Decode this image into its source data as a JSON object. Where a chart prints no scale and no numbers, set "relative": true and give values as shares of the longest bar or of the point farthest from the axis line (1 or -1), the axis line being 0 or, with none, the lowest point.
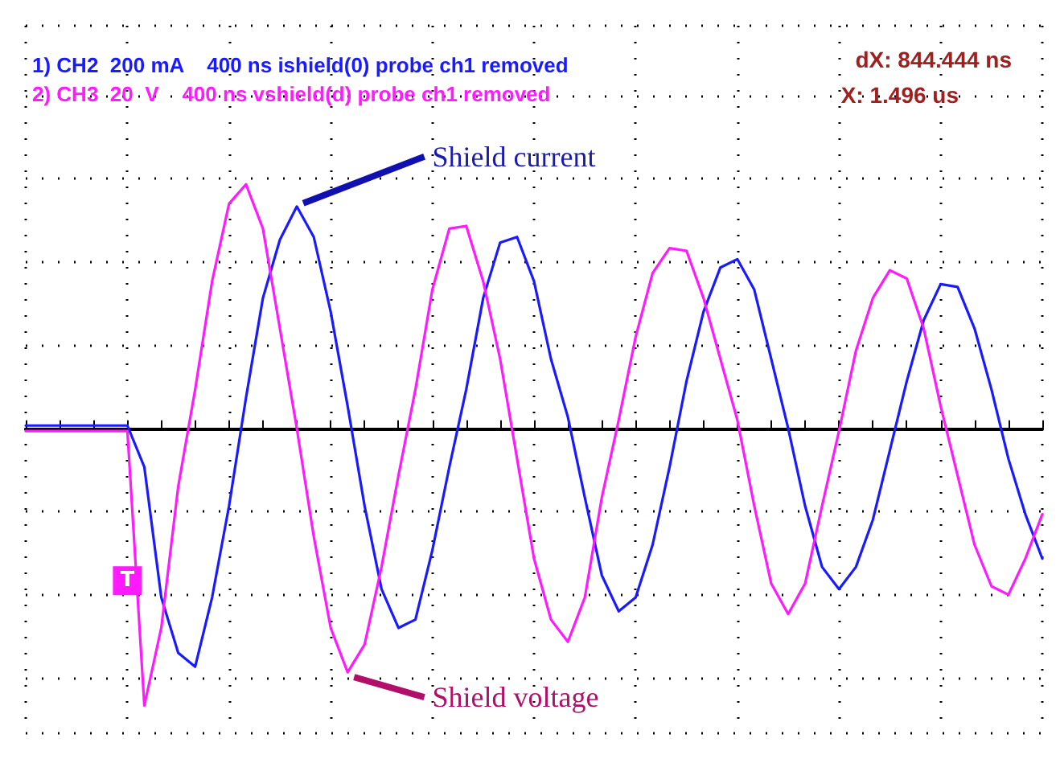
{
  "chart_data": {
    "type": "line",
    "relative": true,
    "grid": true,
    "legend": false,
    "marker": "none",
    "line_style": "solid",
    "categories": [
      null,
      null,
      null,
      null,
      null,
      null,
      null,
      null,
      null,
      null,
      null,
      null,
      null,
      null,
      null,
      null,
      null,
      null,
      null,
      null,
      null,
      null,
      null,
      null,
      null,
      null,
      null,
      null,
      null,
      null,
      null,
      null,
      null,
      null,
      null,
      null,
      null,
      null,
      null,
      null,
      null,
      null,
      null,
      null,
      null,
      null,
      null,
      null,
      null,
      null,
      null,
      null,
      null,
      null,
      null,
      null,
      null,
      null,
      null,
      null,
      null
    ],
    "series": [
      {
        "name": "Shield current",
        "color": "#1a1aff",
        "values": [
          0.01,
          0.01,
          0.01,
          0.01,
          0.01,
          0.01,
          0.01,
          -0.14,
          -0.61,
          -0.81,
          -0.86,
          -0.61,
          -0.28,
          0.11,
          0.47,
          0.68,
          0.8,
          0.69,
          0.42,
          0.08,
          -0.28,
          -0.58,
          -0.72,
          -0.69,
          -0.44,
          -0.14,
          0.14,
          0.47,
          0.67,
          0.69,
          0.53,
          0.25,
          0.04,
          -0.25,
          -0.53,
          -0.66,
          -0.61,
          -0.42,
          -0.14,
          0.17,
          0.42,
          0.58,
          0.61,
          0.5,
          0.25,
          0,
          -0.28,
          -0.5,
          -0.58,
          -0.5,
          -0.33,
          -0.08,
          0.17,
          0.39,
          0.52,
          0.51,
          0.36,
          0.14,
          -0.11,
          -0.31,
          -0.47
        ]
      },
      {
        "name": "Shield voltage",
        "color": "#ff1aff",
        "values": [
          -0.01,
          -0.01,
          -0.01,
          -0.01,
          -0.01,
          -0.01,
          -0.01,
          -1,
          -0.72,
          -0.21,
          0.14,
          0.53,
          0.81,
          0.88,
          0.72,
          0.36,
          0,
          -0.39,
          -0.72,
          -0.88,
          -0.78,
          -0.5,
          -0.17,
          0.14,
          0.5,
          0.72,
          0.73,
          0.53,
          0.25,
          -0.11,
          -0.47,
          -0.69,
          -0.77,
          -0.61,
          -0.25,
          0.03,
          0.33,
          0.56,
          0.65,
          0.64,
          0.47,
          0.25,
          0.03,
          -0.28,
          -0.56,
          -0.67,
          -0.56,
          -0.28,
          -0.01,
          0.28,
          0.47,
          0.57,
          0.54,
          0.36,
          0.08,
          -0.17,
          -0.42,
          -0.57,
          -0.6,
          -0.47,
          -0.31
        ]
      }
    ],
    "annotations": [
      "1) CH2  200 mA    400 ns ishield(0) probe ch1 removed",
      "2) CH3  20  V    400 ns vshield(d) probe ch1 removed",
      "dX: 844.444 ns",
      "X: 1.496 us",
      "T"
    ]
  }
}
